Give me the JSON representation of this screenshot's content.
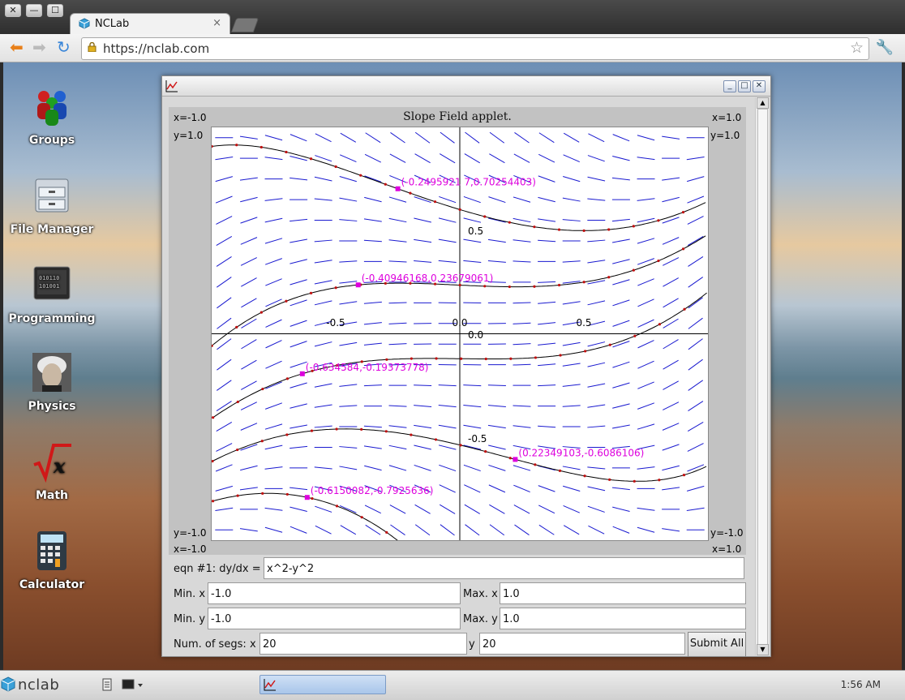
{
  "browser": {
    "tab_title": "NCLab",
    "tab_close": "×",
    "url": "https://nclab.com",
    "window_controls": [
      "✕",
      "—",
      "☐"
    ]
  },
  "desktop_icons": [
    {
      "label": "Groups",
      "icon": "groups-icon"
    },
    {
      "label": "File Manager",
      "icon": "file-manager-icon"
    },
    {
      "label": "Programming",
      "icon": "programming-icon"
    },
    {
      "label": "Physics",
      "icon": "physics-icon"
    },
    {
      "label": "Math",
      "icon": "math-icon"
    },
    {
      "label": "Calculator",
      "icon": "calculator-icon"
    }
  ],
  "applet": {
    "title": "Slope Field applet.",
    "corners": {
      "tl_x": "x=-1.0",
      "tr_x": "x=1.0",
      "tl_y": "y=1.0",
      "tr_y": "y=1.0",
      "bl_y": "y=-1.0",
      "br_y": "y=-1.0",
      "bl_x": "x=-1.0",
      "br_x": "x=1.0"
    },
    "axis_ticks": {
      "x_neg": "-0.5",
      "x_zero": "0.0",
      "x_pos": "0.5",
      "y_pos": "0.5",
      "y_zero": "0.0",
      "y_neg": "-0.5"
    }
  },
  "chart_data": {
    "type": "scatter",
    "title": "Slope Field applet.",
    "equation": "dy/dx = x^2-y^2",
    "xlim": [
      -1.0,
      1.0
    ],
    "ylim": [
      -1.0,
      1.0
    ],
    "segments": {
      "x": 20,
      "y": 20
    },
    "grid": false,
    "annotated_points": [
      {
        "label": "(-0.2495921 7,0.70254403)",
        "x": -0.2496,
        "y": 0.7025
      },
      {
        "label": "(-0.40946168,0.23679061)",
        "x": -0.4095,
        "y": 0.2368
      },
      {
        "label": "(-0.634584,-0.19373778)",
        "x": -0.6346,
        "y": -0.1937
      },
      {
        "label": "(0.22349103,-0.6086106)",
        "x": 0.2235,
        "y": -0.6086
      },
      {
        "label": "(-0.6150082,-0.7925636)",
        "x": -0.615,
        "y": -0.7926
      }
    ],
    "colors": {
      "field": "#1a1ad0",
      "curve": "#000000",
      "marker": "#dd00dd",
      "dots": "#c01010"
    }
  },
  "form": {
    "eqn_label": "eqn #1: dy/dx  =",
    "eqn_value": "x^2-y^2",
    "min_x_label": "Min. x",
    "min_x_value": "-1.0",
    "max_x_label": "Max. x",
    "max_x_value": "1.0",
    "min_y_label": "Min. y",
    "min_y_value": "-1.0",
    "max_y_label": "Max. y",
    "max_y_value": "1.0",
    "segs_label": "Num. of segs:",
    "segs_x_label": "x",
    "segs_x_value": "20",
    "segs_y_label": "y",
    "segs_y_value": "20",
    "submit_label": "Submit All"
  },
  "taskbar": {
    "logo": "nclab",
    "clock": "1:56 AM"
  }
}
